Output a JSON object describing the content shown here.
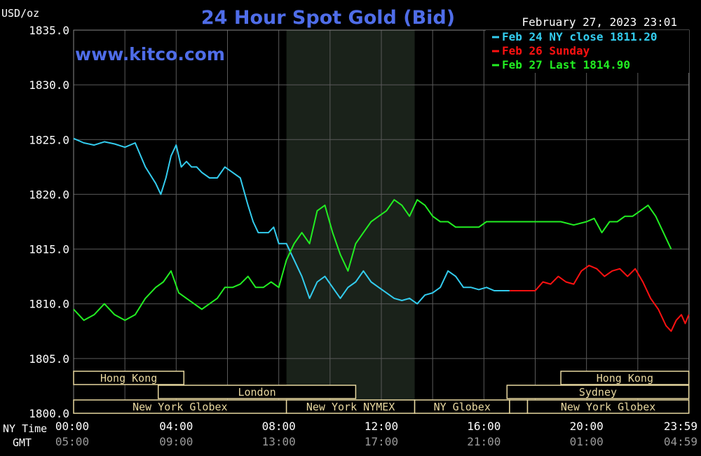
{
  "chart_data": {
    "type": "line",
    "title": "24 Hour Spot Gold (Bid)",
    "watermark": "www.kitco.com",
    "timestamp": "February 27, 2023 23:01",
    "ylabel": "USD/oz",
    "ylim": [
      1800,
      1835
    ],
    "yticks": [
      "1835.0",
      "1830.0",
      "1825.0",
      "1820.0",
      "1815.0",
      "1810.0",
      "1805.0",
      "1800.0"
    ],
    "xlim": [
      0,
      24
    ],
    "xticks": [
      {
        "ny": "00:00",
        "gmt": "05:00"
      },
      {
        "ny": "04:00",
        "gmt": "09:00"
      },
      {
        "ny": "08:00",
        "gmt": "13:00"
      },
      {
        "ny": "12:00",
        "gmt": "17:00"
      },
      {
        "ny": "16:00",
        "gmt": "21:00"
      },
      {
        "ny": "20:00",
        "gmt": "01:00"
      },
      {
        "ny": "23:59",
        "gmt": "04:59"
      }
    ],
    "xlabel_ny": "NY Time",
    "xlabel_gmt": "GMT",
    "grid": true,
    "legend_position": "top-right",
    "series": [
      {
        "name": "Feb 24 NY close 1811.20",
        "color": "#33ccee",
        "x": [
          0,
          0.4,
          0.8,
          1.2,
          1.6,
          2.0,
          2.4,
          2.8,
          3.2,
          3.4,
          3.6,
          3.8,
          4.0,
          4.2,
          4.4,
          4.6,
          4.8,
          5.0,
          5.3,
          5.6,
          5.9,
          6.2,
          6.5,
          6.8,
          7.0,
          7.2,
          7.4,
          7.6,
          7.8,
          8.0,
          8.3,
          8.6,
          8.9,
          9.2,
          9.5,
          9.8,
          10.1,
          10.4,
          10.7,
          11.0,
          11.3,
          11.6,
          11.9,
          12.2,
          12.5,
          12.8,
          13.1,
          13.4,
          13.7,
          14.0,
          14.3,
          14.6,
          14.9,
          15.2,
          15.5,
          15.8,
          16.1,
          16.4,
          16.7,
          17.0
        ],
        "y": [
          1825.1,
          1824.7,
          1824.5,
          1824.8,
          1824.6,
          1824.3,
          1824.7,
          1822.5,
          1821.0,
          1820.0,
          1821.5,
          1823.5,
          1824.5,
          1822.5,
          1823.0,
          1822.5,
          1822.5,
          1822.0,
          1821.5,
          1821.5,
          1822.5,
          1822.0,
          1821.5,
          1819.0,
          1817.5,
          1816.5,
          1816.5,
          1816.5,
          1817.0,
          1815.5,
          1815.5,
          1814.0,
          1812.5,
          1810.5,
          1812.0,
          1812.5,
          1811.5,
          1810.5,
          1811.5,
          1812.0,
          1813.0,
          1812.0,
          1811.5,
          1811.0,
          1810.5,
          1810.3,
          1810.5,
          1810.0,
          1810.8,
          1811.0,
          1811.5,
          1813.0,
          1812.5,
          1811.5,
          1811.5,
          1811.3,
          1811.5,
          1811.2,
          1811.2,
          1811.2
        ]
      },
      {
        "name": "Feb 26 Sunday",
        "color": "#ff1111",
        "x": [
          17.0,
          18.0,
          18.3,
          18.6,
          18.9,
          19.2,
          19.5,
          19.8,
          20.1,
          20.4,
          20.7,
          21.0,
          21.3,
          21.6,
          21.9,
          22.2,
          22.5,
          22.8,
          23.1,
          23.3,
          23.5,
          23.7,
          23.85,
          23.99
        ],
        "y": [
          1811.2,
          1811.2,
          1812.0,
          1811.8,
          1812.5,
          1812.0,
          1811.8,
          1813.0,
          1813.5,
          1813.2,
          1812.5,
          1813.0,
          1813.2,
          1812.5,
          1813.2,
          1812.0,
          1810.5,
          1809.5,
          1808.0,
          1807.5,
          1808.5,
          1809.0,
          1808.2,
          1809.0
        ]
      },
      {
        "name": "Feb 27 Last 1814.90",
        "color": "#22ee22",
        "x": [
          0,
          0.4,
          0.8,
          1.2,
          1.6,
          2.0,
          2.4,
          2.8,
          3.2,
          3.5,
          3.8,
          4.1,
          4.4,
          4.7,
          5.0,
          5.3,
          5.6,
          5.9,
          6.2,
          6.5,
          6.8,
          7.1,
          7.4,
          7.7,
          8.0,
          8.3,
          8.6,
          8.9,
          9.2,
          9.5,
          9.8,
          10.1,
          10.4,
          10.7,
          11.0,
          11.3,
          11.6,
          11.9,
          12.2,
          12.5,
          12.8,
          13.1,
          13.4,
          13.7,
          14.0,
          14.3,
          14.6,
          14.9,
          15.2,
          15.5,
          15.8,
          16.1,
          16.4,
          16.7,
          17.0,
          17.5,
          18.0,
          18.5,
          19.0,
          19.5,
          20.0,
          20.3,
          20.6,
          20.9,
          21.2,
          21.5,
          21.8,
          22.1,
          22.4,
          22.7,
          23.0,
          23.3
        ],
        "y": [
          1809.5,
          1808.5,
          1809.0,
          1810.0,
          1809.0,
          1808.5,
          1809.0,
          1810.5,
          1811.5,
          1812.0,
          1813.0,
          1811.0,
          1810.5,
          1810.0,
          1809.5,
          1810.0,
          1810.5,
          1811.5,
          1811.5,
          1811.8,
          1812.5,
          1811.5,
          1811.5,
          1812.0,
          1811.5,
          1814.0,
          1815.5,
          1816.5,
          1815.5,
          1818.5,
          1819.0,
          1816.5,
          1814.5,
          1813.0,
          1815.5,
          1816.5,
          1817.5,
          1818.0,
          1818.5,
          1819.5,
          1819.0,
          1818.0,
          1819.5,
          1819.0,
          1818.0,
          1817.5,
          1817.5,
          1817.0,
          1817.0,
          1817.0,
          1817.0,
          1817.5,
          1817.5,
          1817.5,
          1817.5,
          1817.5,
          1817.5,
          1817.5,
          1817.5,
          1817.2,
          1817.5,
          1817.8,
          1816.5,
          1817.5,
          1817.5,
          1818.0,
          1818.0,
          1818.5,
          1819.0,
          1818.0,
          1816.5,
          1815.0
        ]
      }
    ],
    "market_sessions": [
      {
        "name": "Hong Kong",
        "start": 0,
        "end": 4.3,
        "row": 1
      },
      {
        "name": "London",
        "start": 3.3,
        "end": 11.0,
        "row": 2
      },
      {
        "name": "New York Globex",
        "start": 0,
        "end": 8.3,
        "row": 3
      },
      {
        "name": "New York NYMEX",
        "start": 8.3,
        "end": 13.3,
        "row": 3
      },
      {
        "name": "NY Globex",
        "start": 13.3,
        "end": 17.0,
        "row": 3
      },
      {
        "name": "",
        "start": 17.0,
        "end": 17.7,
        "row": 3
      },
      {
        "name": "New York Globex",
        "start": 17.7,
        "end": 23.99,
        "row": 3
      },
      {
        "name": "Hong Kong",
        "start": 19.0,
        "end": 23.99,
        "row": 1
      },
      {
        "name": "Sydney",
        "start": 16.9,
        "end": 23.99,
        "row": 2
      }
    ],
    "highlight_window": {
      "start": 8.3,
      "end": 13.3
    },
    "colors": {
      "background": "#000000",
      "grid": "#5a5a5a",
      "axis_text": "#ffffff",
      "title": "#4f6de8",
      "watermark": "#4f6de8",
      "session_text": "#e8d8a0",
      "session_border": "#e8d8a0",
      "highlight": "#1a221a",
      "xtick_gmt": "#999999"
    }
  }
}
